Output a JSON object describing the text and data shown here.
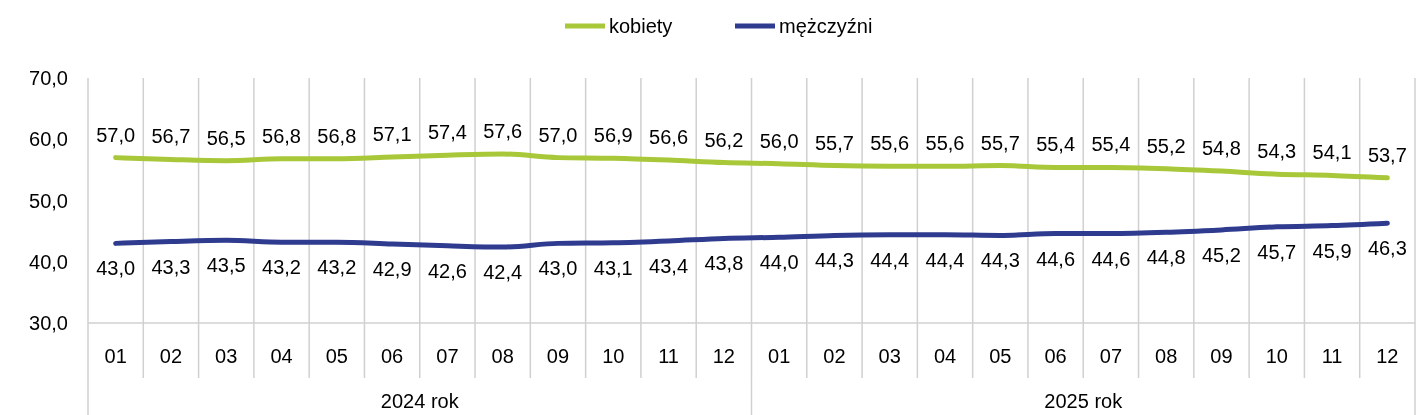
{
  "chart_data": {
    "type": "line",
    "categories": [
      "01",
      "02",
      "03",
      "04",
      "05",
      "06",
      "07",
      "08",
      "09",
      "10",
      "11",
      "12",
      "01",
      "02",
      "03",
      "04",
      "05",
      "06",
      "07",
      "08",
      "09",
      "10",
      "11",
      "12"
    ],
    "series": [
      {
        "name": "kobiety",
        "color": "#a8c83a",
        "values": [
          57.0,
          56.7,
          56.5,
          56.8,
          56.8,
          57.1,
          57.4,
          57.6,
          57.0,
          56.9,
          56.6,
          56.2,
          56.0,
          55.7,
          55.6,
          55.6,
          55.7,
          55.4,
          55.4,
          55.2,
          54.8,
          54.3,
          54.1,
          53.7
        ],
        "value_labels": [
          "57,0",
          "56,7",
          "56,5",
          "56,8",
          "56,8",
          "57,1",
          "57,4",
          "57,6",
          "57,0",
          "56,9",
          "56,6",
          "56,2",
          "56,0",
          "55,7",
          "55,6",
          "55,6",
          "55,7",
          "55,4",
          "55,4",
          "55,2",
          "54,8",
          "54,3",
          "54,1",
          "53,7"
        ]
      },
      {
        "name": "mężczyźni",
        "color": "#2e3b8f",
        "values": [
          43.0,
          43.3,
          43.5,
          43.2,
          43.2,
          42.9,
          42.6,
          42.4,
          43.0,
          43.1,
          43.4,
          43.8,
          44.0,
          44.3,
          44.4,
          44.4,
          44.3,
          44.6,
          44.6,
          44.8,
          45.2,
          45.7,
          45.9,
          46.3
        ],
        "value_labels": [
          "43,0",
          "43,3",
          "43,5",
          "43,2",
          "43,2",
          "42,9",
          "42,6",
          "42,4",
          "43,0",
          "43,1",
          "43,4",
          "43,8",
          "44,0",
          "44,3",
          "44,4",
          "44,4",
          "44,3",
          "44,6",
          "44,6",
          "44,8",
          "45,2",
          "45,7",
          "45,9",
          "46,3"
        ]
      }
    ],
    "ylim": [
      30,
      70
    ],
    "yticks": [
      {
        "value": 30,
        "label": "30,0"
      },
      {
        "value": 40,
        "label": "40,0"
      },
      {
        "value": 50,
        "label": "50,0"
      },
      {
        "value": 60,
        "label": "60,0"
      },
      {
        "value": 70,
        "label": "70,0"
      }
    ],
    "grid": "x",
    "legend": "top",
    "marker": "none",
    "line_style": "solid",
    "annotations": [
      "2024 rok",
      "2025 rok"
    ]
  }
}
